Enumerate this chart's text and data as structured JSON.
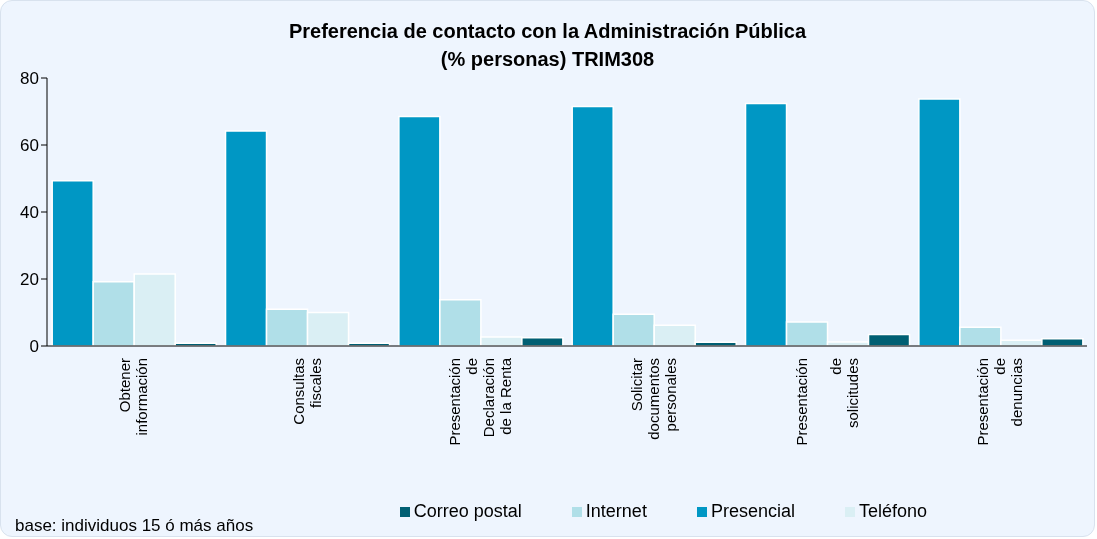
{
  "chart_data": {
    "type": "bar",
    "title": "Preferencia de contacto con la Administración Pública\n(% personas) TRIM308",
    "categories": [
      "Obtener\ninformación",
      "Consultas\nfiscales",
      "Presentación\nde\nDeclaración\nde la Renta",
      "Solicitar\ndocumentos\npersonales",
      "Presentación\n\nde\nsolicitudes",
      "Presentación\nde\ndenuncias"
    ],
    "series": [
      {
        "name": "Presencial",
        "color": "#0097c4",
        "values": [
          49.3,
          64.2,
          68.5,
          71.5,
          72.4,
          73.7
        ]
      },
      {
        "name": "Internet",
        "color": "#b0dfe8",
        "values": [
          19.2,
          11,
          13.8,
          9.5,
          7.2,
          5.6
        ]
      },
      {
        "name": "Teléfono",
        "color": "#daeff4",
        "values": [
          21.5,
          10,
          2.7,
          6.2,
          1.2,
          1.7
        ]
      },
      {
        "name": "Correo postal",
        "color": "#005f73",
        "values": [
          0.8,
          0.8,
          2.5,
          1.1,
          3.4,
          2.2
        ]
      }
    ],
    "ylim": [
      0,
      80
    ],
    "yticks": [
      0,
      20,
      40,
      60,
      80
    ],
    "grid": false,
    "legend": "bottom",
    "annotations": [
      "base: individuos 15 ó más años"
    ]
  }
}
